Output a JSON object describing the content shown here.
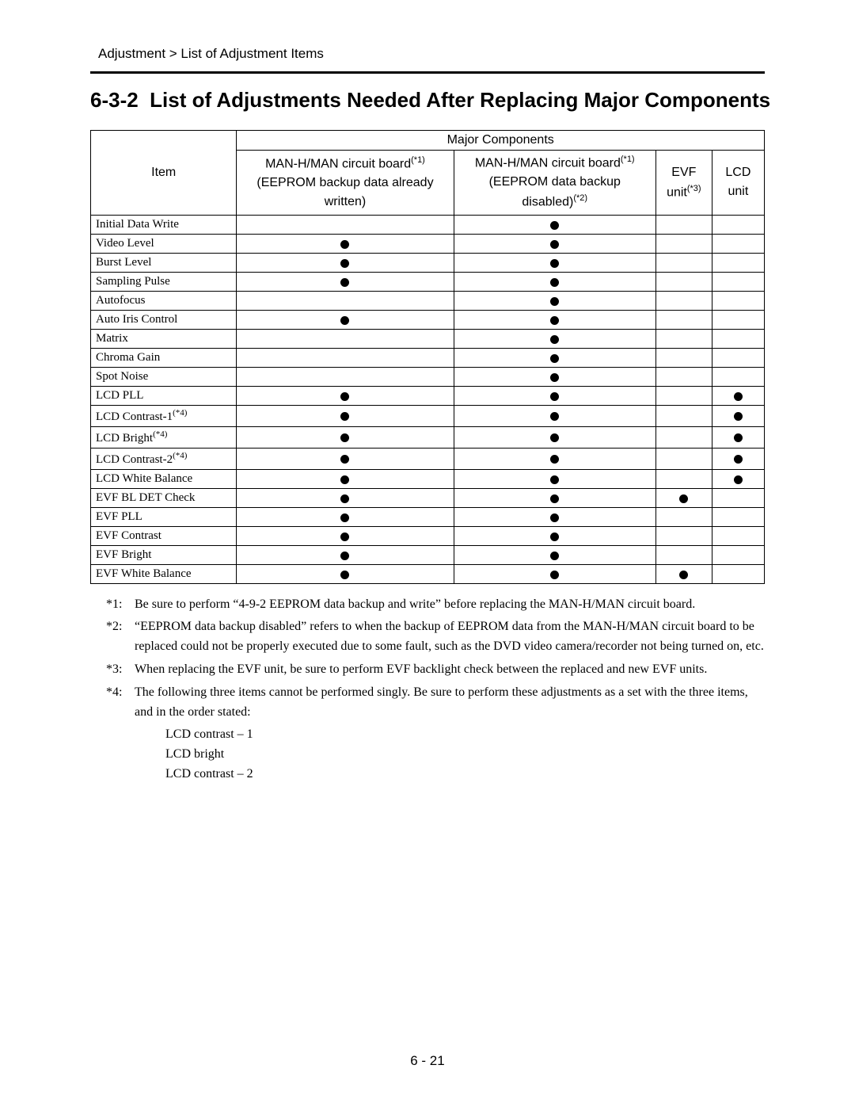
{
  "breadcrumb": "Adjustment > List of Adjustment Items",
  "section_number": "6-3-2",
  "section_title": "List of Adjustments Needed After Replacing Major Components",
  "page_number": "6 - 21",
  "dot_color": "#000000",
  "table": {
    "header": {
      "item_label": "Item",
      "major_components_label": "Major Components",
      "columns": [
        {
          "line1": "MAN-H/MAN circuit board",
          "sup": "(*1)",
          "line2": "(EEPROM backup data already",
          "line3": "written)"
        },
        {
          "line1": "MAN-H/MAN circuit board",
          "sup": "(*1)",
          "line2": "(EEPROM data backup",
          "line3_a": "disabled)",
          "line3_sup": "(*2)"
        },
        {
          "line1": "EVF",
          "line2_a": "unit",
          "line2_sup": "(*3)"
        },
        {
          "line1": "LCD",
          "line2": "unit"
        }
      ]
    },
    "rows": [
      {
        "item": "Initial Data Write",
        "marks": [
          false,
          true,
          false,
          false
        ]
      },
      {
        "item": "Video Level",
        "marks": [
          true,
          true,
          false,
          false
        ]
      },
      {
        "item": "Burst Level",
        "marks": [
          true,
          true,
          false,
          false
        ]
      },
      {
        "item": "Sampling Pulse",
        "marks": [
          true,
          true,
          false,
          false
        ]
      },
      {
        "item": "Autofocus",
        "marks": [
          false,
          true,
          false,
          false
        ]
      },
      {
        "item": "Auto Iris Control",
        "marks": [
          true,
          true,
          false,
          false
        ]
      },
      {
        "item": "Matrix",
        "marks": [
          false,
          true,
          false,
          false
        ]
      },
      {
        "item": "Chroma Gain",
        "marks": [
          false,
          true,
          false,
          false
        ]
      },
      {
        "item": "Spot Noise",
        "marks": [
          false,
          true,
          false,
          false
        ]
      },
      {
        "item": "LCD PLL",
        "marks": [
          true,
          true,
          false,
          true
        ]
      },
      {
        "item": "LCD Contrast-1",
        "item_sup": "(*4)",
        "marks": [
          true,
          true,
          false,
          true
        ]
      },
      {
        "item": "LCD Bright",
        "item_sup": "(*4)",
        "marks": [
          true,
          true,
          false,
          true
        ]
      },
      {
        "item": "LCD Contrast-2",
        "item_sup": "(*4)",
        "marks": [
          true,
          true,
          false,
          true
        ]
      },
      {
        "item": "LCD White Balance",
        "marks": [
          true,
          true,
          false,
          true
        ]
      },
      {
        "item": "EVF BL DET Check",
        "marks": [
          true,
          true,
          true,
          false
        ]
      },
      {
        "item": "EVF PLL",
        "marks": [
          true,
          true,
          false,
          false
        ]
      },
      {
        "item": "EVF Contrast",
        "marks": [
          true,
          true,
          false,
          false
        ]
      },
      {
        "item": "EVF Bright",
        "marks": [
          true,
          true,
          false,
          false
        ]
      },
      {
        "item": "EVF White Balance",
        "marks": [
          true,
          true,
          true,
          false
        ]
      }
    ]
  },
  "footnotes": [
    {
      "marker": "*1:",
      "text": "Be sure to perform “4-9-2 EEPROM data backup and write” before replacing the MAN-H/MAN circuit board."
    },
    {
      "marker": "*2:",
      "text": "“EEPROM data backup disabled” refers to when the backup of EEPROM data from the MAN-H/MAN circuit board to be replaced could not be properly executed due to some fault, such as the DVD video camera/recorder not being turned on, etc."
    },
    {
      "marker": "*3:",
      "text": "When replacing the EVF unit, be sure to perform EVF backlight check between the replaced and new EVF units."
    },
    {
      "marker": "*4:",
      "text": "The following three items cannot be performed singly. Be sure to perform these adjustments as a set with the three items, and in the order stated:"
    }
  ],
  "footnote4_sublist": [
    "LCD contrast – 1",
    "LCD bright",
    "LCD contrast – 2"
  ]
}
